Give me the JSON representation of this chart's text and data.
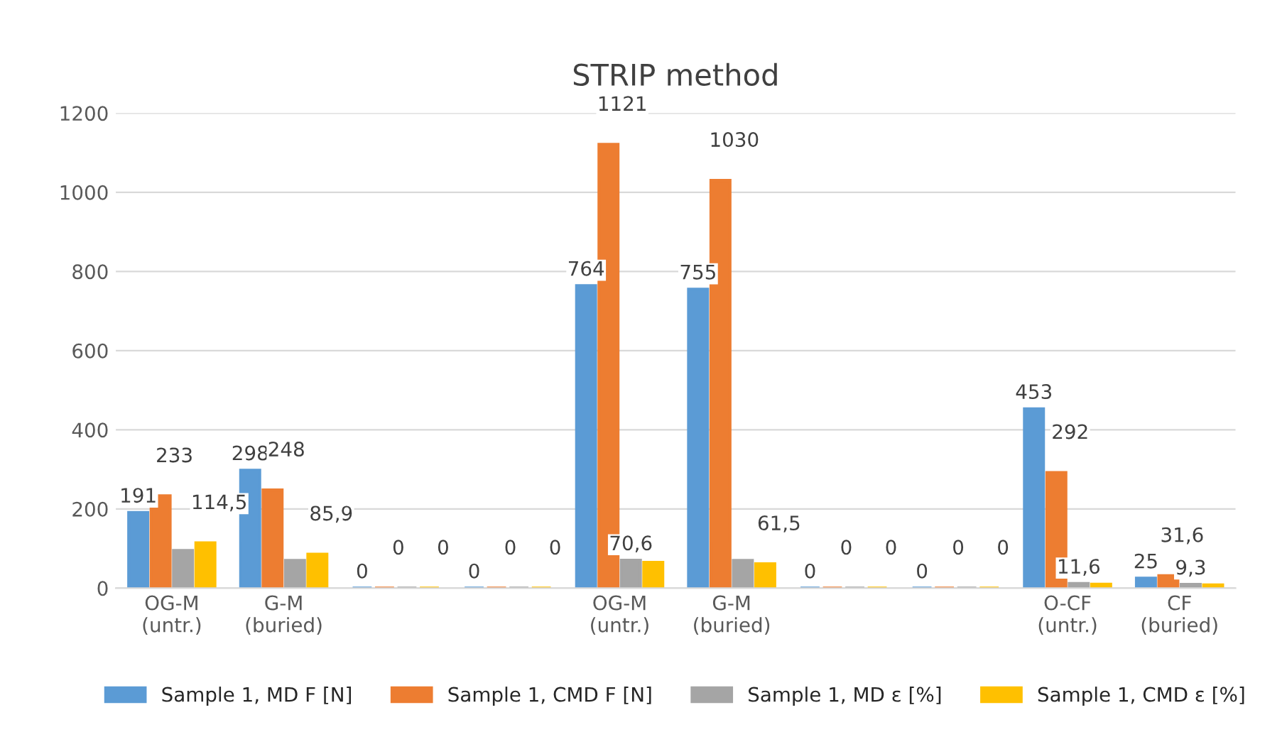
{
  "chart_data": {
    "type": "bar",
    "title": "STRIP method",
    "categories": [
      "OG-M\n(untr.)",
      "G-M\n(buried)",
      null,
      null,
      "OG-M\n(untr.)",
      "G-M\n(buried)",
      null,
      null,
      "O-CF\n(untr.)",
      "CF\n(buried)"
    ],
    "series": [
      {
        "name": "Sample 1, MD F [N]",
        "color": "#5b9bd5",
        "values": [
          191,
          298,
          0,
          0,
          764,
          755,
          0,
          0,
          453,
          25
        ],
        "value_labels": [
          "191",
          "298",
          "0",
          "0",
          "764",
          "755",
          "0",
          "0",
          "453",
          "25"
        ]
      },
      {
        "name": "Sample 1, CMD F [N]",
        "color": "#ed7d31",
        "values": [
          233,
          248,
          0,
          0,
          1121,
          1030,
          0,
          0,
          292,
          31.6
        ],
        "value_labels": [
          "233",
          "248",
          "0",
          "0",
          "1121",
          "1030",
          "0",
          "0",
          "292",
          "31,6"
        ]
      },
      {
        "name": "Sample 1, MD ε [%]",
        "color": "#a5a5a5",
        "values": [
          95,
          70,
          0,
          0,
          70.6,
          70,
          0,
          0,
          11.6,
          9.3
        ],
        "value_labels": [
          null,
          null,
          null,
          null,
          "70,6",
          null,
          null,
          null,
          "11,6",
          "9,3"
        ]
      },
      {
        "name": "Sample 1, CMD ε [%]",
        "color": "#ffc000",
        "values": [
          114.5,
          85.9,
          0,
          0,
          65,
          61.5,
          0,
          0,
          10,
          8
        ],
        "value_labels": [
          "114,5",
          "85,9",
          "0",
          "0",
          null,
          "61,5",
          "0",
          "0",
          null,
          null
        ]
      }
    ],
    "ylim": [
      0,
      1200
    ],
    "yticks": [
      0,
      200,
      400,
      600,
      800,
      1000,
      1200
    ],
    "grid": "y",
    "legend": "bottom"
  }
}
